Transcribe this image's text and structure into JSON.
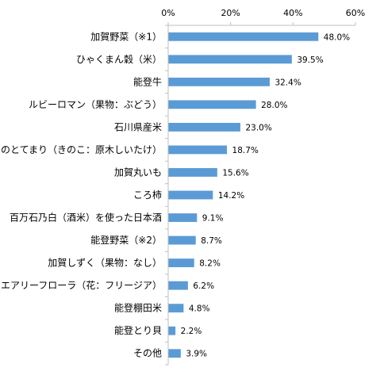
{
  "chart_data": {
    "type": "bar",
    "orientation": "horizontal",
    "categories": [
      "加賀野菜（※1）",
      "ひゃくまん穀（米）",
      "能登牛",
      "ルビーロマン（果物：ぶどう）",
      "石川県産米",
      "のとてまり（きのこ：原木しいたけ）",
      "加賀丸いも",
      "ころ柿",
      "百万石乃白（酒米）を使った日本酒",
      "能登野菜（※2）",
      "加賀しずく（果物：なし）",
      "エアリーフローラ（花：フリージア）",
      "能登棚田米",
      "能登とり貝",
      "その他"
    ],
    "values": [
      48.0,
      39.5,
      32.4,
      28.0,
      23.0,
      18.7,
      15.6,
      14.2,
      9.1,
      8.7,
      8.2,
      6.2,
      4.8,
      2.2,
      3.9
    ],
    "value_labels": [
      "48.0%",
      "39.5%",
      "32.4%",
      "28.0%",
      "23.0%",
      "18.7%",
      "15.6%",
      "14.2%",
      "9.1%",
      "8.7%",
      "8.2%",
      "6.2%",
      "4.8%",
      "2.2%",
      "3.9%"
    ],
    "xlim": [
      0,
      60
    ],
    "x_ticks": [
      "0%",
      "20%",
      "40%",
      "60%"
    ],
    "x_axis_position": "top",
    "grid": false,
    "bar_color": "#5b9bd5",
    "title": "",
    "xlabel": "",
    "ylabel": ""
  }
}
